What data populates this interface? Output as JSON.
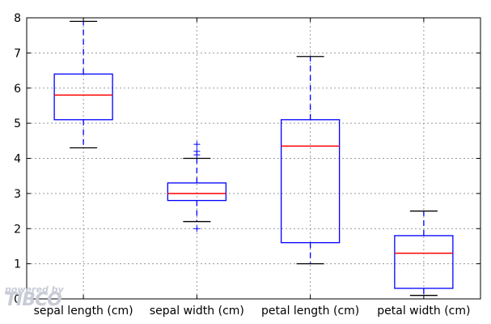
{
  "chart_data": {
    "type": "box",
    "title": "",
    "xlabel": "",
    "ylabel": "",
    "ylim": [
      0,
      8
    ],
    "yticks": [
      0,
      1,
      2,
      3,
      4,
      5,
      6,
      7,
      8
    ],
    "grid": true,
    "categories": [
      "sepal length (cm)",
      "sepal width (cm)",
      "petal length (cm)",
      "petal width (cm)"
    ],
    "boxes": [
      {
        "category": "sepal length (cm)",
        "whisker_low": 4.3,
        "q1": 5.1,
        "median": 5.8,
        "q3": 6.4,
        "whisker_high": 7.9,
        "outliers": []
      },
      {
        "category": "sepal width (cm)",
        "whisker_low": 2.2,
        "q1": 2.8,
        "median": 3.0,
        "q3": 3.3,
        "whisker_high": 4.0,
        "outliers": [
          2.0,
          4.1,
          4.2,
          4.4
        ]
      },
      {
        "category": "petal length (cm)",
        "whisker_low": 1.0,
        "q1": 1.6,
        "median": 4.35,
        "q3": 5.1,
        "whisker_high": 6.9,
        "outliers": []
      },
      {
        "category": "petal width (cm)",
        "whisker_low": 0.1,
        "q1": 0.3,
        "median": 1.3,
        "q3": 1.8,
        "whisker_high": 2.5,
        "outliers": []
      }
    ],
    "colors": {
      "box": "#0000ff",
      "median": "#ff0000",
      "cap": "#000000",
      "flier": "#0000ff",
      "grid": "#9a9a9a"
    }
  },
  "watermark": {
    "line1": "powered by",
    "line2": "TIBCO"
  }
}
